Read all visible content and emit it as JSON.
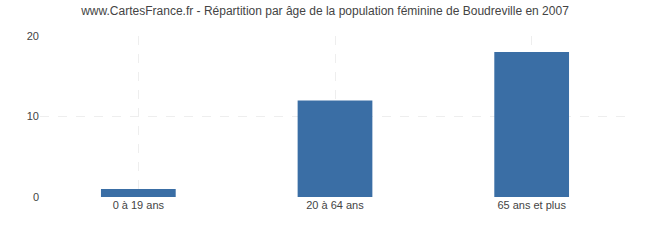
{
  "chart_data": {
    "type": "bar",
    "title": "www.CartesFrance.fr - Répartition par âge de la population féminine de Boudreville en 2007",
    "categories": [
      "0 à 19 ans",
      "20 à 64 ans",
      "65 ans et plus"
    ],
    "values": [
      1,
      12,
      18
    ],
    "color": "#3a6ea5",
    "ylim": [
      0,
      20
    ],
    "yticks": [
      0,
      10,
      20
    ],
    "grid": true
  }
}
